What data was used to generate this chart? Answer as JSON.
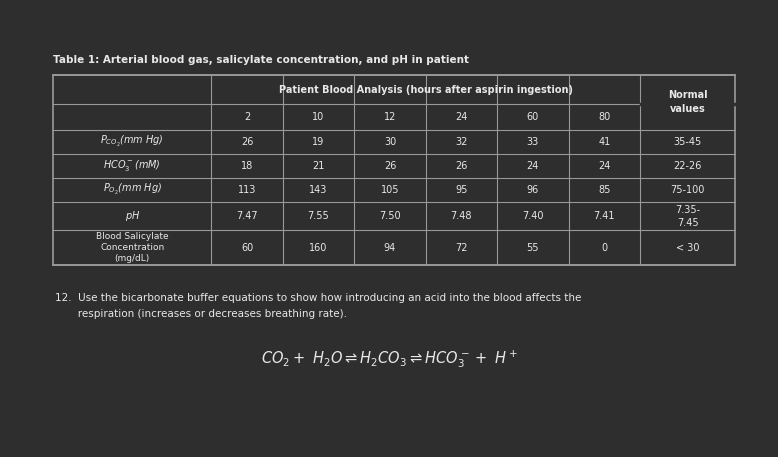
{
  "bg_color": "#2e2e2e",
  "text_color": "#e8e8e8",
  "table_border_color": "#999999",
  "title": "Table 1: Arterial blood gas, salicylate concentration, and pH in patient",
  "header_main": "Patient Blood Analysis (hours after aspirin ingestion)",
  "header_hours": [
    "2",
    "10",
    "12",
    "24",
    "60",
    "80"
  ],
  "rows": [
    {
      "label_parts": [
        [
          "P",
          "italic"
        ],
        [
          "CO",
          "sub_italic"
        ],
        [
          "2",
          "subsub_italic"
        ],
        [
          "(mm Hg)",
          "italic"
        ]
      ],
      "label_tex": "$P_{CO_2}$(mm Hg)",
      "label_italic": true,
      "values": [
        "26",
        "19",
        "30",
        "32",
        "33",
        "41",
        "35-45"
      ]
    },
    {
      "label_tex": "$HCO_3^-$(mM)",
      "label_italic": true,
      "values": [
        "18",
        "21",
        "26",
        "26",
        "24",
        "24",
        "22-26"
      ]
    },
    {
      "label_tex": "$P_{O_2}$(mm Hg)",
      "label_italic": true,
      "values": [
        "113",
        "143",
        "105",
        "95",
        "96",
        "85",
        "75-100"
      ]
    },
    {
      "label_tex": "$pH$",
      "label_italic": true,
      "values": [
        "7.47",
        "7.55",
        "7.50",
        "7.48",
        "7.40",
        "7.41",
        "7.35-\n7.45"
      ]
    },
    {
      "label_tex": "Blood Salicylate\nConcentration\n(mg/dL)",
      "label_italic": false,
      "values": [
        "60",
        "160",
        "94",
        "72",
        "55",
        "0",
        "< 30"
      ]
    }
  ],
  "question_line1": "12.  Use the bicarbonate buffer equations to show how introducing an acid into the blood affects the",
  "question_line2": "       respiration (increases or decreases breathing rate).",
  "equation": "$CO_2 +\\ H_2O \\rightleftharpoons H_2CO_3 \\rightleftharpoons HCO_3^- +\\ H^+$",
  "title_fontsize": 7.5,
  "table_fontsize": 7.0,
  "question_fontsize": 7.5,
  "eq_fontsize": 10.5
}
